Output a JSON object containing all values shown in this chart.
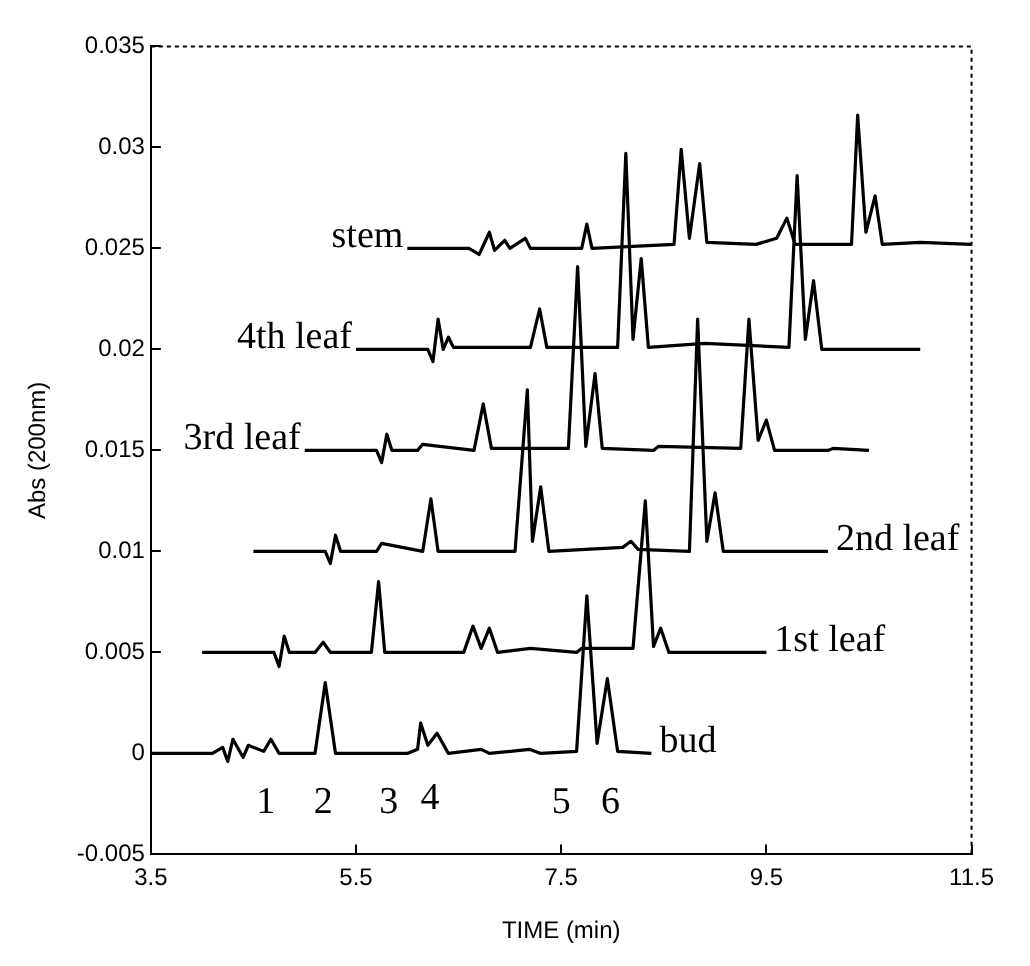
{
  "chart_data": {
    "type": "line",
    "xlabel": "TIME (min)",
    "ylabel": "Abs (200nm)",
    "xlim": [
      3.5,
      11.5
    ],
    "xticks": [
      3.5,
      5.5,
      7.5,
      9.5,
      11.5
    ],
    "ylim": [
      -0.005,
      0.035
    ],
    "yticks": [
      -0.005,
      0,
      0.005,
      0.01,
      0.015,
      0.02,
      0.025,
      0.03,
      0.035
    ],
    "grid": false,
    "legend": false,
    "marker": "none",
    "line_style": "solid",
    "series": [
      {
        "name": "bud",
        "color": "#000000",
        "x": [
          3.5,
          4.1,
          4.2,
          4.25,
          4.3,
          4.4,
          4.45,
          4.6,
          4.67,
          4.75,
          5.1,
          5.2,
          5.3,
          6.0,
          6.1,
          6.13,
          6.2,
          6.29,
          6.4,
          6.72,
          6.8,
          7.19,
          7.3,
          7.65,
          7.75,
          7.85,
          7.95,
          8.05,
          8.38
        ],
        "values": [
          0,
          0,
          0.0003,
          -0.0004,
          0.0007,
          -0.0002,
          0.0004,
          0.0001,
          0.0007,
          0,
          0,
          0.0035,
          0,
          0,
          0.0002,
          0.0015,
          0.0004,
          0.001,
          0,
          0.0002,
          0,
          0.0002,
          0,
          0.0001,
          0.0078,
          0.0005,
          0.0037,
          0.0001,
          0
        ]
      },
      {
        "name": "1st leaf",
        "color": "#000000",
        "x": [
          4.0,
          4.7,
          4.75,
          4.8,
          4.85,
          5.1,
          5.18,
          5.25,
          5.65,
          5.72,
          5.78,
          6.55,
          6.64,
          6.72,
          6.8,
          6.88,
          7.2,
          7.65,
          7.7,
          8.2,
          8.32,
          8.4,
          8.47,
          8.55,
          9.5
        ],
        "values": [
          0.005,
          0.005,
          0.0043,
          0.0058,
          0.005,
          0.005,
          0.0055,
          0.005,
          0.005,
          0.0085,
          0.005,
          0.005,
          0.0063,
          0.0052,
          0.0062,
          0.005,
          0.0052,
          0.005,
          0.0052,
          0.0052,
          0.0125,
          0.0053,
          0.0062,
          0.005,
          0.005
        ]
      },
      {
        "name": "2nd leaf",
        "color": "#000000",
        "x": [
          4.5,
          5.2,
          5.25,
          5.3,
          5.35,
          5.7,
          5.75,
          6.15,
          6.23,
          6.3,
          7.05,
          7.17,
          7.22,
          7.3,
          7.38,
          8.1,
          8.18,
          8.25,
          8.75,
          8.83,
          8.92,
          9.0,
          9.08,
          10.1
        ],
        "values": [
          0.01,
          0.01,
          0.0094,
          0.0108,
          0.01,
          0.01,
          0.0104,
          0.01,
          0.0126,
          0.01,
          0.01,
          0.018,
          0.0105,
          0.0132,
          0.01,
          0.0102,
          0.0105,
          0.0101,
          0.01,
          0.0215,
          0.0105,
          0.0129,
          0.01,
          0.01
        ]
      },
      {
        "name": "3rd leaf",
        "color": "#000000",
        "x": [
          5.0,
          5.7,
          5.75,
          5.8,
          5.85,
          6.1,
          6.15,
          6.65,
          6.74,
          6.82,
          7.57,
          7.66,
          7.74,
          7.83,
          7.9,
          8.4,
          8.45,
          9.25,
          9.33,
          9.42,
          9.5,
          9.58,
          10.1,
          10.15,
          10.5
        ],
        "values": [
          0.015,
          0.015,
          0.0144,
          0.0158,
          0.015,
          0.015,
          0.0153,
          0.015,
          0.0173,
          0.0151,
          0.0151,
          0.0241,
          0.0152,
          0.0188,
          0.0151,
          0.015,
          0.0152,
          0.0151,
          0.0215,
          0.0155,
          0.0165,
          0.015,
          0.015,
          0.0151,
          0.015
        ]
      },
      {
        "name": "4th leaf",
        "color": "#000000",
        "x": [
          5.5,
          6.2,
          6.25,
          6.3,
          6.35,
          6.4,
          6.45,
          7.2,
          7.29,
          7.36,
          8.05,
          8.13,
          8.2,
          8.28,
          8.35,
          8.9,
          9.72,
          9.8,
          9.88,
          9.96,
          10.04,
          11.0
        ],
        "values": [
          0.02,
          0.02,
          0.0194,
          0.0215,
          0.02,
          0.0206,
          0.0201,
          0.0201,
          0.022,
          0.0201,
          0.0201,
          0.0297,
          0.0205,
          0.0245,
          0.0201,
          0.0203,
          0.0201,
          0.0286,
          0.0205,
          0.0234,
          0.02,
          0.02
        ]
      },
      {
        "name": "stem",
        "color": "#000000",
        "x": [
          6.0,
          6.6,
          6.7,
          6.8,
          6.85,
          6.95,
          7.0,
          7.15,
          7.2,
          7.7,
          7.75,
          7.8,
          8.6,
          8.67,
          8.75,
          8.85,
          8.92,
          9.4,
          9.6,
          9.7,
          9.78,
          10.33,
          10.39,
          10.47,
          10.56,
          10.63,
          11.0,
          11.5
        ],
        "values": [
          0.025,
          0.025,
          0.0247,
          0.0258,
          0.0249,
          0.0254,
          0.025,
          0.0255,
          0.025,
          0.025,
          0.0262,
          0.025,
          0.0252,
          0.0299,
          0.0255,
          0.0292,
          0.0253,
          0.0252,
          0.0255,
          0.0265,
          0.0252,
          0.0252,
          0.0316,
          0.0258,
          0.0276,
          0.0252,
          0.0253,
          0.0252
        ]
      }
    ],
    "annotations": [
      "1",
      "2",
      "3",
      "4",
      "5",
      "6"
    ]
  }
}
